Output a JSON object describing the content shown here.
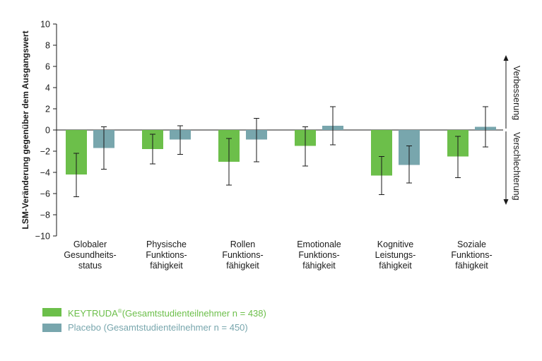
{
  "chart_data": {
    "type": "bar",
    "ylabel": "LSM-Veränderung gegenüber dem Ausgangswert",
    "ylim": [
      -10,
      10
    ],
    "yticks": [
      10,
      8,
      6,
      4,
      2,
      0,
      -2,
      -4,
      -6,
      -8,
      -10
    ],
    "ytick_labels": [
      "10",
      "8",
      "6",
      "4",
      "2",
      "0",
      "−2",
      "−4",
      "−6",
      "−8",
      "−10"
    ],
    "categories": [
      [
        "Globaler",
        "Gesundheits-",
        "status"
      ],
      [
        "Physische",
        "Funktions-",
        "fähigkeit"
      ],
      [
        "Rollen",
        "Funktions-",
        "fähigkeit"
      ],
      [
        "Emotionale",
        "Funktions-",
        "fähigkeit"
      ],
      [
        "Kognitive",
        "Leistungs-",
        "fähigkeit"
      ],
      [
        "Soziale",
        "Funktions-",
        "fähigkeit"
      ]
    ],
    "series": [
      {
        "name": "KEYTRUDA",
        "legend_label": "KEYTRUDA",
        "legend_suffix": "(Gesamtstudienteilnehmer n = 438)",
        "color": "#6cbf4a",
        "values": [
          -4.2,
          -1.8,
          -3.0,
          -1.5,
          -4.3,
          -2.5
        ],
        "error_low": [
          -6.3,
          -3.2,
          -5.2,
          -3.4,
          -6.1,
          -4.5
        ],
        "error_high": [
          -2.2,
          -0.4,
          -0.8,
          0.3,
          -2.5,
          -0.6
        ]
      },
      {
        "name": "Placebo",
        "legend_label": "Placebo",
        "legend_suffix": "(Gesamtstudienteilnehmer n = 450)",
        "color": "#78a6ad",
        "values": [
          -1.7,
          -0.9,
          -0.9,
          0.4,
          -3.3,
          0.3
        ],
        "error_low": [
          -3.7,
          -2.3,
          -3.0,
          -1.4,
          -5.0,
          -1.6
        ],
        "error_high": [
          0.3,
          0.4,
          1.1,
          2.2,
          -1.5,
          2.2
        ]
      }
    ],
    "annotations": {
      "up": "Verbesserung",
      "down": "Verschlechterung"
    },
    "legend_position": "bottom-left",
    "grid": false
  }
}
